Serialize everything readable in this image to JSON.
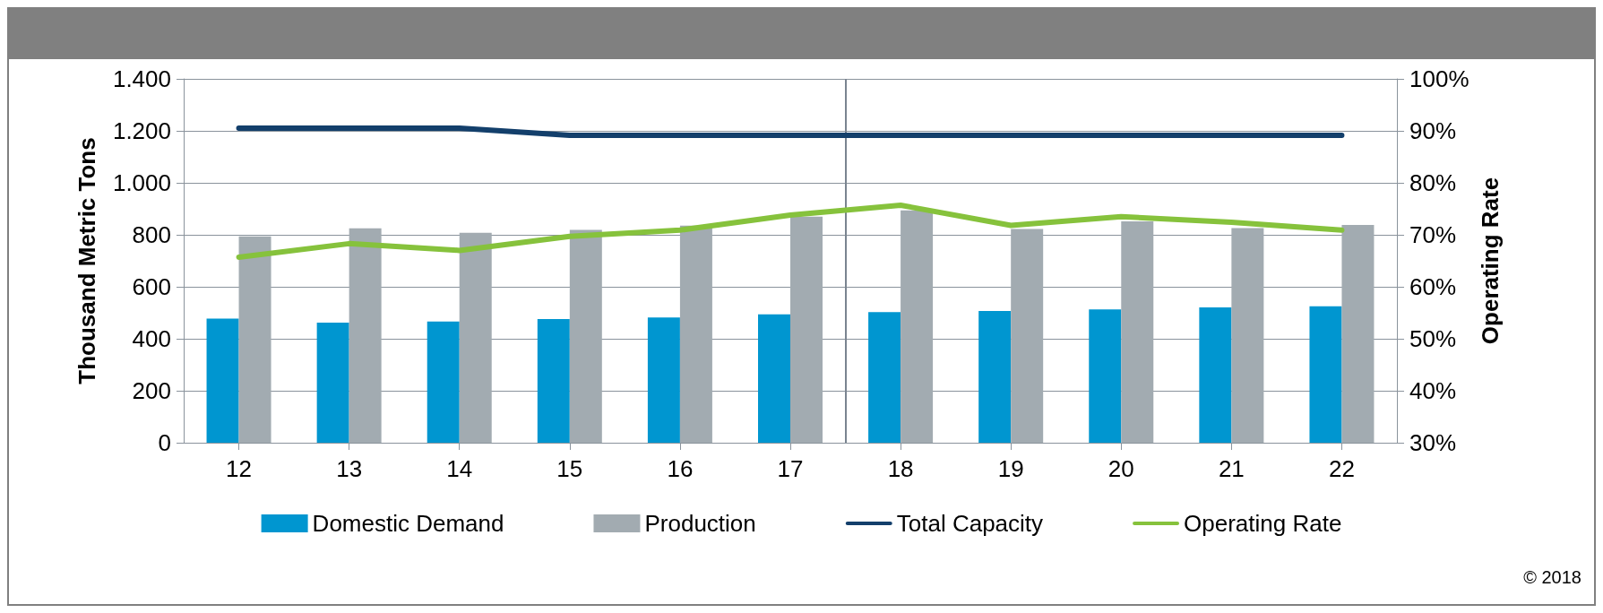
{
  "chart_data": {
    "type": "bar",
    "ylabel": "Thousand Metric Tons",
    "y2label": "Operating Rate",
    "x": [
      12,
      13,
      14,
      15,
      16,
      17,
      18,
      19,
      20,
      21,
      22
    ],
    "xlim": [
      11.5,
      22.5
    ],
    "xticks": [
      12,
      13,
      14,
      15,
      16,
      17,
      18,
      19,
      20,
      21,
      22
    ],
    "series": [
      {
        "name": "Domestic Demand",
        "color": "#0096d0",
        "values": [
          478,
          462,
          466,
          476,
          482,
          494,
          503,
          507,
          513,
          521,
          525
        ]
      },
      {
        "name": "Production",
        "color": "#a2abb1",
        "values": [
          794,
          825,
          808,
          819,
          835,
          870,
          894,
          822,
          852,
          826,
          838
        ]
      },
      {
        "name": "Total Capacity",
        "type": "line",
        "color": "#133f6b",
        "values": [
          1210,
          1210,
          1210,
          1183,
          1183,
          1183,
          1183,
          1183,
          1183,
          1183,
          1183
        ]
      },
      {
        "name": "Operating Rate",
        "type": "line",
        "axis": "y2",
        "color": "#86c23c",
        "values": [
          65.7,
          68.3,
          67.0,
          69.7,
          70.9,
          73.8,
          75.7,
          71.8,
          73.5,
          72.4,
          70.9
        ]
      }
    ],
    "ylim": [
      0,
      1400
    ],
    "yticks": [
      0,
      200,
      400,
      600,
      800,
      {
        "value": 1000,
        "label": "1.000"
      },
      {
        "value": 1200,
        "label": "1.200"
      },
      {
        "value": 1400,
        "label": "1.400"
      }
    ],
    "y2lim": [
      30,
      100
    ],
    "y2ticks": [
      {
        "value": 30,
        "label": "30%"
      },
      {
        "value": 40,
        "label": "40%"
      },
      {
        "value": 50,
        "label": "50%"
      },
      {
        "value": 60,
        "label": "60%"
      },
      {
        "value": 70,
        "label": "70%"
      },
      {
        "value": 80,
        "label": "80%"
      },
      {
        "value": 90,
        "label": "90%"
      },
      {
        "value": 100,
        "label": "100%"
      }
    ],
    "ref_lines": [
      {
        "axis": "x",
        "value": 17.5,
        "color": "#7a8490"
      }
    ],
    "grid": "y",
    "legend": "bottom",
    "marker": "none",
    "line_style": "solid",
    "annotations": [
      "© 2018"
    ]
  }
}
